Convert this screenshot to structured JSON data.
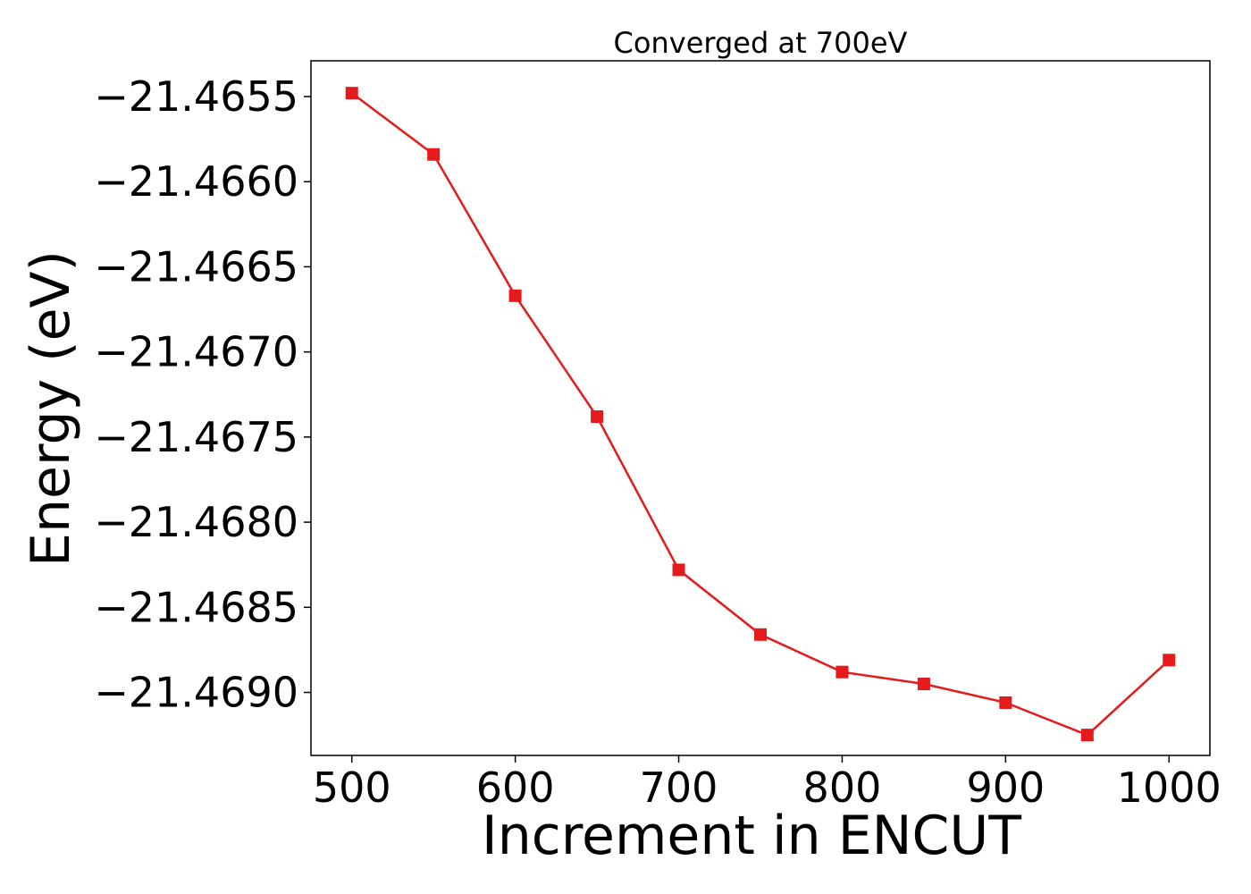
{
  "chart_data": {
    "type": "line",
    "title": "Converged at 700eV",
    "xlabel": "Increment in ENCUT",
    "ylabel": "Energy (eV)",
    "x": [
      500,
      550,
      600,
      650,
      700,
      750,
      800,
      850,
      900,
      950,
      1000
    ],
    "series": [
      {
        "values": [
          -21.46548,
          -21.46584,
          -21.46667,
          -21.46738,
          -21.46828,
          -21.46866,
          -21.46888,
          -21.46895,
          -21.46906,
          -21.46925,
          -21.46881
        ],
        "color": "#e41a1c",
        "marker": "square"
      }
    ],
    "xlim": [
      475,
      1025
    ],
    "ylim": [
      -21.46937,
      -21.46529
    ],
    "xticks": [
      500,
      600,
      700,
      800,
      900,
      1000
    ],
    "xtick_labels": [
      "500",
      "600",
      "700",
      "800",
      "900",
      "1000"
    ],
    "yticks": [
      -21.4655,
      -21.466,
      -21.4665,
      -21.467,
      -21.4675,
      -21.468,
      -21.4685,
      -21.469
    ],
    "ytick_labels": [
      "−21.4655",
      "−21.4660",
      "−21.4665",
      "−21.4670",
      "−21.4675",
      "−21.4680",
      "−21.4685",
      "−21.4690"
    ],
    "grid": false,
    "legend": "none"
  }
}
